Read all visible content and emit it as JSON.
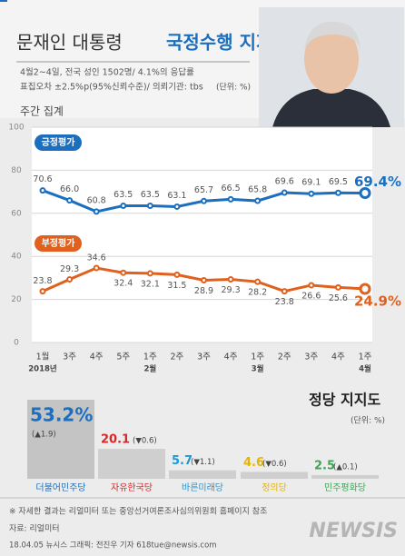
{
  "header": {
    "title_prefix": "문재인 대통령",
    "title_main": "국정수행 지지도",
    "notes": [
      "4월2~4일, 전국 성인 1502명/ 4.1%의 응답률",
      "표집오차 ±2.5%p(95%신뢰수준)/ 의뢰기관: tbs"
    ],
    "unit": "(단위: %)",
    "section": "주간 집계"
  },
  "chart_data": [
    {
      "type": "line",
      "categories": [
        "1월",
        "3주",
        "4주",
        "5주",
        "1주",
        "2주",
        "3주",
        "4주",
        "1주",
        "2주",
        "3주",
        "4주",
        "1주"
      ],
      "month_labels": [
        "2018년",
        null,
        null,
        null,
        "2월",
        null,
        null,
        null,
        "3월",
        null,
        null,
        null,
        "4월"
      ],
      "ylim": [
        0,
        100
      ],
      "yticks": [
        0,
        20,
        40,
        60,
        80,
        100
      ],
      "grid": true,
      "series": [
        {
          "name": "긍정평가",
          "color": "#1b6fbe",
          "values": [
            70.6,
            66.0,
            60.8,
            63.5,
            63.5,
            63.1,
            65.7,
            66.5,
            65.8,
            69.6,
            69.1,
            69.5,
            69.4
          ],
          "value_labels": [
            "70.6",
            "66.0",
            "60.8",
            "63.5",
            "63.5",
            "63.1",
            "65.7",
            "66.5",
            "65.8",
            "69.6",
            "69.1",
            "69.5",
            "69.4%"
          ]
        },
        {
          "name": "부정평가",
          "color": "#e0601e",
          "values": [
            23.8,
            29.3,
            34.6,
            32.4,
            32.1,
            31.5,
            28.9,
            29.3,
            28.2,
            23.8,
            26.6,
            25.6,
            24.9
          ],
          "value_labels": [
            "23.8",
            "29.3",
            "34.6",
            "32.4",
            "32.1",
            "31.5",
            "28.9",
            "29.3",
            "28.2",
            "23.8",
            "26.6",
            "25.6",
            "24.9%"
          ]
        }
      ]
    },
    {
      "type": "bar",
      "title": "정당 지지도",
      "unit": "(단위: %)",
      "categories": [
        "더불어민주당",
        "자유한국당",
        "바른미래당",
        "정의당",
        "민주평화당"
      ],
      "values": [
        53.2,
        20.1,
        5.7,
        4.6,
        2.5
      ],
      "value_labels": [
        "53.2%",
        "20.1",
        "5.7",
        "4.6",
        "2.5"
      ],
      "change_labels": [
        "(▲1.9)",
        "(▼0.6)",
        "(▼1.1)",
        "(▼0.6)",
        "(▲0.1)"
      ],
      "colors": [
        "#1b6fbe",
        "#d22a2a",
        "#1a9ad6",
        "#e6b400",
        "#3aa655"
      ]
    }
  ],
  "footer": {
    "note": "※ 자세한 결과는 리얼미터 또는 중앙선거여론조사심의위원회 홈페이지 참조",
    "source": "자료: 리얼미터",
    "credit": "18.04.05 뉴시스 그래픽: 전진우 기자 618tue@newsis.com",
    "logo": "NEWSIS"
  }
}
